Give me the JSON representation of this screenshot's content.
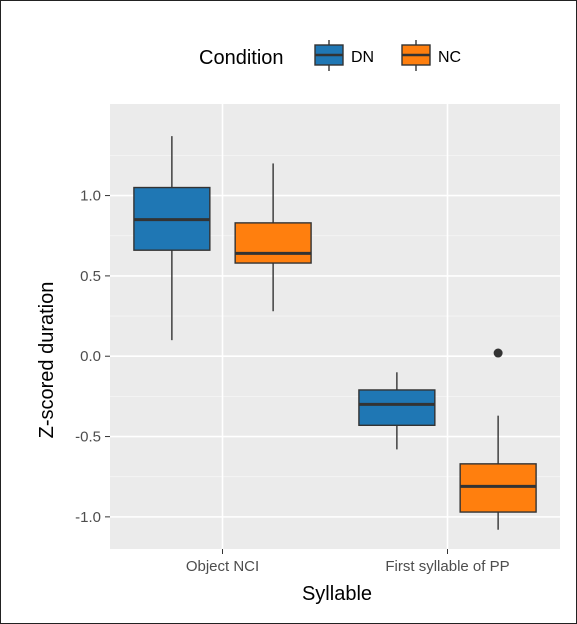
{
  "chart_data": {
    "type": "box",
    "xlabel": "Syllable",
    "ylabel": "Z-scored duration",
    "categories": [
      "Object NCI",
      "First syllable of PP"
    ],
    "ylim": [
      -1.2,
      1.57
    ],
    "yticks": [
      1.0,
      0.5,
      0.0,
      -0.5,
      -1.0
    ],
    "ytick_labels": [
      "1.0",
      "0.5",
      "0.0",
      "-0.5",
      "-1.0"
    ],
    "grid": true,
    "legend": {
      "title": "Condition",
      "placement": "top",
      "entries": [
        "DN",
        "NC"
      ]
    },
    "series": [
      {
        "name": "DN",
        "color": "#1f77b4",
        "boxes": [
          {
            "min": 0.1,
            "q1": 0.66,
            "median": 0.85,
            "q3": 1.05,
            "max": 1.37,
            "outliers": []
          },
          {
            "min": -0.58,
            "q1": -0.43,
            "median": -0.3,
            "q3": -0.21,
            "max": -0.1,
            "outliers": []
          }
        ]
      },
      {
        "name": "NC",
        "color": "#ff7f0e",
        "boxes": [
          {
            "min": 0.28,
            "q1": 0.58,
            "median": 0.64,
            "q3": 0.83,
            "max": 1.2,
            "outliers": []
          },
          {
            "min": -1.08,
            "q1": -0.97,
            "median": -0.81,
            "q3": -0.67,
            "max": -0.37,
            "outliers": [
              0.02
            ]
          }
        ]
      }
    ]
  }
}
